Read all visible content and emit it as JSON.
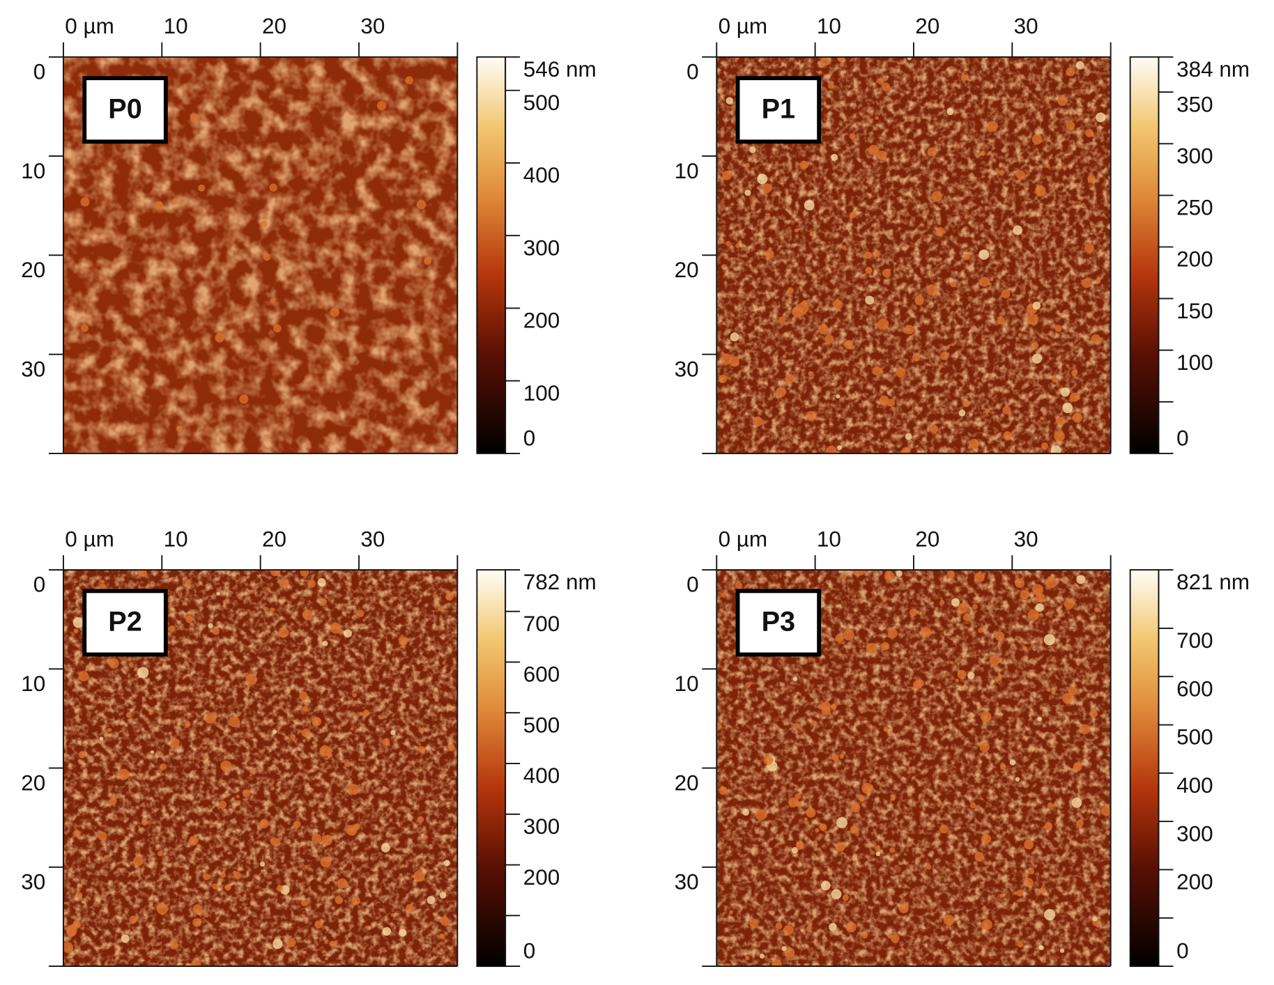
{
  "chart_data": [
    {
      "type": "image",
      "title": "P0",
      "xlim": [
        0,
        40
      ],
      "ylim": [
        0,
        40
      ],
      "xticks": [
        {
          "value": 0,
          "label": "0 µm"
        },
        10,
        20,
        30
      ],
      "yticks": [
        0,
        10,
        20,
        30
      ],
      "clim": [
        0,
        546
      ],
      "cticks": [
        {
          "value": 546,
          "label": "546 nm"
        },
        500,
        400,
        300,
        200,
        100,
        0
      ],
      "cminor": []
    },
    {
      "type": "image",
      "title": "P1",
      "xlim": [
        0,
        40
      ],
      "ylim": [
        0,
        40
      ],
      "xticks": [
        {
          "value": 0,
          "label": "0 µm"
        },
        10,
        20,
        30
      ],
      "yticks": [
        0,
        10,
        20,
        30
      ],
      "clim": [
        0,
        384
      ],
      "cticks": [
        {
          "value": 384,
          "label": "384 nm"
        },
        350,
        300,
        250,
        200,
        150,
        100,
        0
      ],
      "cminor": [
        50
      ]
    },
    {
      "type": "image",
      "title": "P2",
      "xlim": [
        0,
        40
      ],
      "ylim": [
        0,
        40
      ],
      "xticks": [
        {
          "value": 0,
          "label": "0 µm"
        },
        10,
        20,
        30
      ],
      "yticks": [
        0,
        10,
        20,
        30
      ],
      "clim": [
        0,
        782
      ],
      "cticks": [
        {
          "value": 782,
          "label": "782 nm"
        },
        700,
        600,
        500,
        400,
        300,
        200,
        0
      ],
      "cminor": [
        100
      ]
    },
    {
      "type": "image",
      "title": "P3",
      "xlim": [
        0,
        40
      ],
      "ylim": [
        0,
        40
      ],
      "xticks": [
        {
          "value": 0,
          "label": "0 µm"
        },
        10,
        20,
        30
      ],
      "yticks": [
        0,
        10,
        20,
        30
      ],
      "clim": [
        0,
        821
      ],
      "cticks": [
        {
          "value": 821,
          "label": "821 nm"
        },
        700,
        600,
        500,
        400,
        300,
        200,
        0
      ],
      "cminor": [
        100
      ]
    }
  ]
}
